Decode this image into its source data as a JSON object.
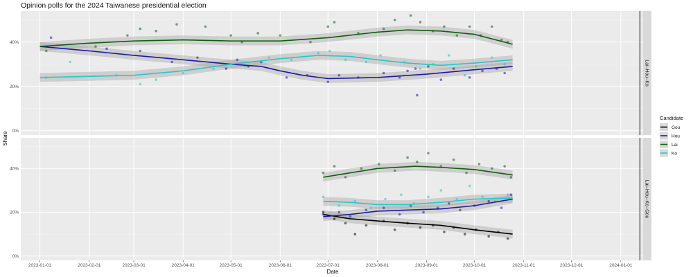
{
  "chart_data": {
    "type": "scatter",
    "title": "Opinion polls for the 2024 Taiwanese presidential election",
    "xlabel": "Date",
    "ylabel": "Share",
    "x_ticks": [
      "2023-01-01",
      "2023-02-01",
      "2023-03-01",
      "2023-04-01",
      "2023-05-01",
      "2023-06-01",
      "2023-07-01",
      "2023-08-01",
      "2023-09-01",
      "2023-10-01",
      "2023-11-01",
      "2023-12-01",
      "2024-01-01"
    ],
    "xlim": [
      "2022-12-20",
      "2024-01-15"
    ],
    "ylim": [
      -0.02,
      0.54
    ],
    "y_ticks": [
      0,
      0.2,
      0.4
    ],
    "y_tick_labels": [
      "0%",
      "20%",
      "40%"
    ],
    "vline_date": "2024-01-13",
    "grid": true,
    "legend": {
      "title": "Candidate",
      "position": "right",
      "entries": [
        {
          "name": "Gou",
          "color": "#000000"
        },
        {
          "name": "Hou",
          "color": "#1a1aa6"
        },
        {
          "name": "Lai",
          "color": "#0f5f0f"
        },
        {
          "name": "Ko",
          "color": "#29c7c7"
        }
      ]
    },
    "panels": [
      {
        "strip": "Lai–Hou–Ko",
        "series": [
          {
            "name": "Hou",
            "smooth": [
              [
                "2023-01-01",
                0.38
              ],
              [
                "2023-02-01",
                0.36
              ],
              [
                "2023-03-01",
                0.34
              ],
              [
                "2023-04-01",
                0.32
              ],
              [
                "2023-05-01",
                0.3
              ],
              [
                "2023-05-20",
                0.29
              ],
              [
                "2023-06-01",
                0.27
              ],
              [
                "2023-06-15",
                0.25
              ],
              [
                "2023-07-01",
                0.235
              ],
              [
                "2023-08-01",
                0.24
              ],
              [
                "2023-09-01",
                0.255
              ],
              [
                "2023-10-01",
                0.275
              ],
              [
                "2023-10-25",
                0.29
              ]
            ],
            "points": [
              [
                "2023-01-08",
                0.42
              ],
              [
                "2023-02-12",
                0.37
              ],
              [
                "2023-03-05",
                0.36
              ],
              [
                "2023-03-25",
                0.31
              ],
              [
                "2023-04-10",
                0.33
              ],
              [
                "2023-04-28",
                0.28
              ],
              [
                "2023-05-05",
                0.32
              ],
              [
                "2023-05-12",
                0.29
              ],
              [
                "2023-05-20",
                0.31
              ],
              [
                "2023-06-05",
                0.24
              ],
              [
                "2023-06-18",
                0.25
              ],
              [
                "2023-07-01",
                0.22
              ],
              [
                "2023-07-08",
                0.25
              ],
              [
                "2023-07-20",
                0.24
              ],
              [
                "2023-08-05",
                0.26
              ],
              [
                "2023-08-15",
                0.24
              ],
              [
                "2023-08-20",
                0.27
              ],
              [
                "2023-08-25",
                0.28
              ],
              [
                "2023-08-26",
                0.16
              ],
              [
                "2023-09-02",
                0.29
              ],
              [
                "2023-09-10",
                0.23
              ],
              [
                "2023-09-18",
                0.28
              ],
              [
                "2023-09-28",
                0.24
              ],
              [
                "2023-10-06",
                0.27
              ],
              [
                "2023-10-15",
                0.28
              ],
              [
                "2023-10-20",
                0.26
              ]
            ]
          },
          {
            "name": "Lai",
            "smooth": [
              [
                "2023-01-01",
                0.38
              ],
              [
                "2023-02-01",
                0.395
              ],
              [
                "2023-03-01",
                0.405
              ],
              [
                "2023-04-01",
                0.41
              ],
              [
                "2023-05-01",
                0.405
              ],
              [
                "2023-06-01",
                0.405
              ],
              [
                "2023-07-01",
                0.42
              ],
              [
                "2023-08-01",
                0.445
              ],
              [
                "2023-08-20",
                0.455
              ],
              [
                "2023-09-10",
                0.45
              ],
              [
                "2023-10-01",
                0.435
              ],
              [
                "2023-10-25",
                0.39
              ]
            ],
            "points": [
              [
                "2023-01-05",
                0.36
              ],
              [
                "2023-02-05",
                0.38
              ],
              [
                "2023-02-25",
                0.43
              ],
              [
                "2023-03-05",
                0.46
              ],
              [
                "2023-03-15",
                0.45
              ],
              [
                "2023-03-28",
                0.48
              ],
              [
                "2023-04-15",
                0.47
              ],
              [
                "2023-05-01",
                0.43
              ],
              [
                "2023-05-08",
                0.4
              ],
              [
                "2023-05-18",
                0.44
              ],
              [
                "2023-06-01",
                0.43
              ],
              [
                "2023-06-20",
                0.4
              ],
              [
                "2023-07-01",
                0.47
              ],
              [
                "2023-07-05",
                0.49
              ],
              [
                "2023-07-20",
                0.44
              ],
              [
                "2023-08-05",
                0.46
              ],
              [
                "2023-08-12",
                0.5
              ],
              [
                "2023-08-22",
                0.52
              ],
              [
                "2023-08-28",
                0.49
              ],
              [
                "2023-09-05",
                0.45
              ],
              [
                "2023-09-12",
                0.47
              ],
              [
                "2023-09-20",
                0.43
              ],
              [
                "2023-09-28",
                0.47
              ],
              [
                "2023-10-05",
                0.43
              ],
              [
                "2023-10-12",
                0.47
              ],
              [
                "2023-10-18",
                0.41
              ],
              [
                "2023-10-22",
                0.4
              ]
            ]
          },
          {
            "name": "Ko",
            "smooth": [
              [
                "2023-01-01",
                0.24
              ],
              [
                "2023-02-01",
                0.245
              ],
              [
                "2023-03-01",
                0.25
              ],
              [
                "2023-04-01",
                0.27
              ],
              [
                "2023-05-01",
                0.3
              ],
              [
                "2023-06-01",
                0.325
              ],
              [
                "2023-06-25",
                0.34
              ],
              [
                "2023-07-15",
                0.335
              ],
              [
                "2023-08-01",
                0.32
              ],
              [
                "2023-08-20",
                0.305
              ],
              [
                "2023-09-10",
                0.295
              ],
              [
                "2023-10-01",
                0.305
              ],
              [
                "2023-10-25",
                0.32
              ]
            ],
            "points": [
              [
                "2023-01-05",
                0.24
              ],
              [
                "2023-01-20",
                0.31
              ],
              [
                "2023-02-18",
                0.25
              ],
              [
                "2023-03-05",
                0.21
              ],
              [
                "2023-03-15",
                0.23
              ],
              [
                "2023-04-01",
                0.26
              ],
              [
                "2023-04-20",
                0.28
              ],
              [
                "2023-05-01",
                0.3
              ],
              [
                "2023-05-10",
                0.29
              ],
              [
                "2023-05-25",
                0.33
              ],
              [
                "2023-06-08",
                0.32
              ],
              [
                "2023-06-25",
                0.35
              ],
              [
                "2023-07-02",
                0.36
              ],
              [
                "2023-07-12",
                0.32
              ],
              [
                "2023-07-25",
                0.31
              ],
              [
                "2023-08-03",
                0.34
              ],
              [
                "2023-08-18",
                0.31
              ],
              [
                "2023-08-28",
                0.28
              ],
              [
                "2023-09-05",
                0.3
              ],
              [
                "2023-09-15",
                0.34
              ],
              [
                "2023-09-25",
                0.25
              ],
              [
                "2023-10-02",
                0.29
              ],
              [
                "2023-10-12",
                0.33
              ],
              [
                "2023-10-20",
                0.3
              ]
            ]
          }
        ]
      },
      {
        "strip": "Lai–Hou–Ko–Gou",
        "series": [
          {
            "name": "Gou",
            "smooth": [
              [
                "2023-06-28",
                0.19
              ],
              [
                "2023-07-15",
                0.17
              ],
              [
                "2023-08-01",
                0.16
              ],
              [
                "2023-08-20",
                0.15
              ],
              [
                "2023-09-10",
                0.14
              ],
              [
                "2023-10-01",
                0.12
              ],
              [
                "2023-10-25",
                0.1
              ]
            ],
            "points": [
              [
                "2023-06-28",
                0.2
              ],
              [
                "2023-07-05",
                0.17
              ],
              [
                "2023-07-12",
                0.15
              ],
              [
                "2023-07-18",
                0.1
              ],
              [
                "2023-07-25",
                0.14
              ],
              [
                "2023-08-05",
                0.16
              ],
              [
                "2023-08-12",
                0.12
              ],
              [
                "2023-08-20",
                0.15
              ],
              [
                "2023-08-28",
                0.13
              ],
              [
                "2023-09-05",
                0.14
              ],
              [
                "2023-09-12",
                0.11
              ],
              [
                "2023-09-18",
                0.13
              ],
              [
                "2023-09-25",
                0.1
              ],
              [
                "2023-10-02",
                0.12
              ],
              [
                "2023-10-10",
                0.09
              ],
              [
                "2023-10-16",
                0.11
              ],
              [
                "2023-10-22",
                0.08
              ]
            ]
          },
          {
            "name": "Hou",
            "smooth": [
              [
                "2023-06-28",
                0.18
              ],
              [
                "2023-07-15",
                0.19
              ],
              [
                "2023-08-01",
                0.205
              ],
              [
                "2023-08-20",
                0.21
              ],
              [
                "2023-09-10",
                0.215
              ],
              [
                "2023-10-01",
                0.23
              ],
              [
                "2023-10-25",
                0.26
              ]
            ],
            "points": [
              [
                "2023-06-28",
                0.19
              ],
              [
                "2023-07-08",
                0.2
              ],
              [
                "2023-07-15",
                0.18
              ],
              [
                "2023-07-25",
                0.21
              ],
              [
                "2023-08-05",
                0.22
              ],
              [
                "2023-08-15",
                0.19
              ],
              [
                "2023-08-22",
                0.23
              ],
              [
                "2023-08-30",
                0.2
              ],
              [
                "2023-09-08",
                0.22
              ],
              [
                "2023-09-15",
                0.24
              ],
              [
                "2023-09-22",
                0.21
              ],
              [
                "2023-10-01",
                0.23
              ],
              [
                "2023-10-10",
                0.25
              ],
              [
                "2023-10-18",
                0.22
              ],
              [
                "2023-10-24",
                0.28
              ]
            ]
          },
          {
            "name": "Lai",
            "smooth": [
              [
                "2023-06-28",
                0.36
              ],
              [
                "2023-07-15",
                0.38
              ],
              [
                "2023-08-01",
                0.4
              ],
              [
                "2023-08-25",
                0.41
              ],
              [
                "2023-09-10",
                0.405
              ],
              [
                "2023-10-01",
                0.395
              ],
              [
                "2023-10-25",
                0.37
              ]
            ],
            "points": [
              [
                "2023-06-28",
                0.38
              ],
              [
                "2023-07-05",
                0.41
              ],
              [
                "2023-07-12",
                0.36
              ],
              [
                "2023-07-22",
                0.4
              ],
              [
                "2023-08-02",
                0.42
              ],
              [
                "2023-08-12",
                0.39
              ],
              [
                "2023-08-20",
                0.45
              ],
              [
                "2023-08-26",
                0.43
              ],
              [
                "2023-09-02",
                0.47
              ],
              [
                "2023-09-10",
                0.41
              ],
              [
                "2023-09-18",
                0.44
              ],
              [
                "2023-09-26",
                0.38
              ],
              [
                "2023-10-04",
                0.42
              ],
              [
                "2023-10-12",
                0.4
              ],
              [
                "2023-10-20",
                0.41
              ],
              [
                "2023-10-24",
                0.36
              ]
            ]
          },
          {
            "name": "Ko",
            "smooth": [
              [
                "2023-06-28",
                0.25
              ],
              [
                "2023-07-15",
                0.245
              ],
              [
                "2023-08-01",
                0.235
              ],
              [
                "2023-08-20",
                0.235
              ],
              [
                "2023-09-10",
                0.245
              ],
              [
                "2023-10-01",
                0.26
              ],
              [
                "2023-10-25",
                0.265
              ]
            ],
            "points": [
              [
                "2023-06-28",
                0.27
              ],
              [
                "2023-07-08",
                0.23
              ],
              [
                "2023-07-18",
                0.25
              ],
              [
                "2023-07-28",
                0.22
              ],
              [
                "2023-08-06",
                0.26
              ],
              [
                "2023-08-16",
                0.28
              ],
              [
                "2023-08-24",
                0.24
              ],
              [
                "2023-09-02",
                0.27
              ],
              [
                "2023-09-10",
                0.3
              ],
              [
                "2023-09-20",
                0.26
              ],
              [
                "2023-09-28",
                0.32
              ],
              [
                "2023-10-06",
                0.27
              ],
              [
                "2023-10-14",
                0.25
              ],
              [
                "2023-10-22",
                0.28
              ]
            ]
          }
        ]
      }
    ]
  }
}
